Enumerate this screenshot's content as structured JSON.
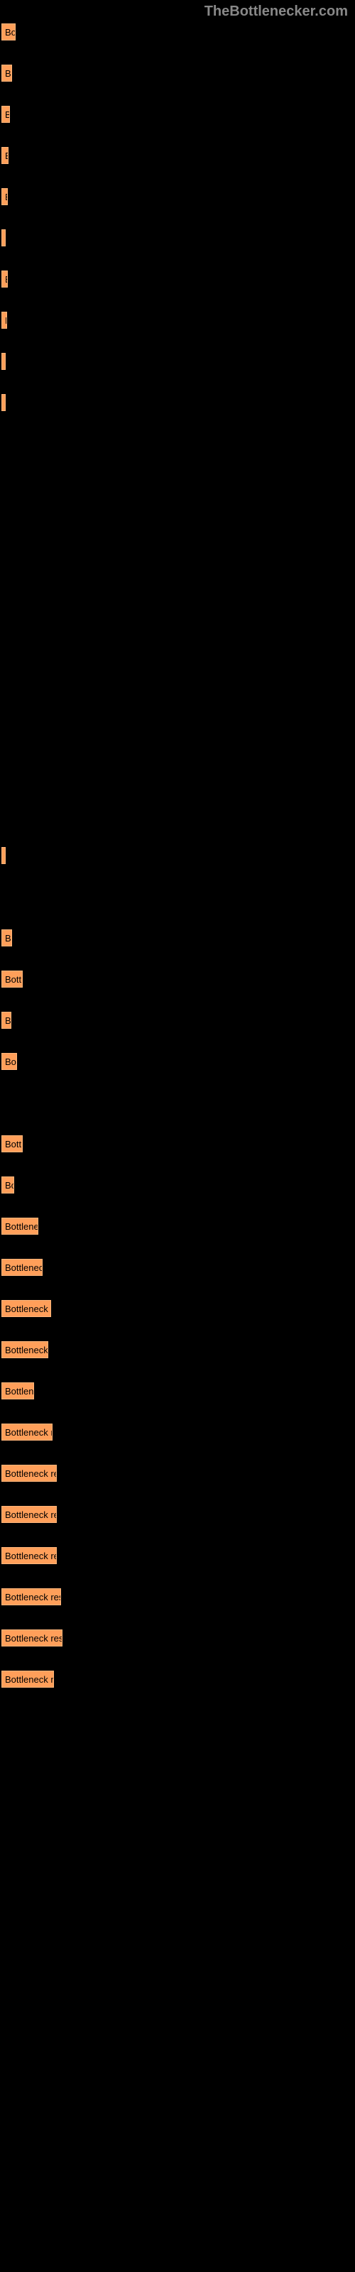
{
  "watermark_text": "TheBottlenecker.com",
  "chart": {
    "type": "bar",
    "bar_color": "#ff9f5a",
    "bar_border_color": "#ffb57a",
    "background_color": "#000000",
    "label_color": "#000000",
    "label_fontsize": 13,
    "bars": [
      {
        "width": 20,
        "label": "Bo"
      },
      {
        "width": 15,
        "label": "Bo"
      },
      {
        "width": 12,
        "label": "B"
      },
      {
        "width": 10,
        "label": "B"
      },
      {
        "width": 9,
        "label": "B"
      },
      {
        "width": 4,
        "label": ""
      },
      {
        "width": 9,
        "label": "B"
      },
      {
        "width": 8,
        "label": "B"
      },
      {
        "width": 3,
        "label": ""
      },
      {
        "width": 2,
        "label": ""
      },
      {
        "width": 0,
        "label": "",
        "spacer": true
      },
      {
        "width": 0,
        "label": "",
        "spacer": true
      },
      {
        "width": 0,
        "label": "",
        "spacer": true
      },
      {
        "width": 0,
        "label": "",
        "spacer": true
      },
      {
        "width": 0,
        "label": "",
        "spacer": true
      },
      {
        "width": 0,
        "label": "",
        "spacer": true
      },
      {
        "width": 0,
        "label": "",
        "spacer": true
      },
      {
        "width": 0,
        "label": "",
        "spacer": true
      },
      {
        "width": 0,
        "label": "",
        "spacer": true
      },
      {
        "width": 0,
        "label": "",
        "spacer": true
      },
      {
        "width": 4,
        "label": ""
      },
      {
        "width": 0,
        "label": "",
        "spacer": true
      },
      {
        "width": 15,
        "label": "B"
      },
      {
        "width": 30,
        "label": "Bottle"
      },
      {
        "width": 14,
        "label": "B"
      },
      {
        "width": 22,
        "label": "Bot"
      },
      {
        "width": 0,
        "label": "",
        "spacer": true
      },
      {
        "width": 30,
        "label": "Bottle"
      },
      {
        "width": 18,
        "label": "Bo"
      },
      {
        "width": 52,
        "label": "Bottleneck"
      },
      {
        "width": 58,
        "label": "Bottleneck r"
      },
      {
        "width": 70,
        "label": "Bottleneck res"
      },
      {
        "width": 66,
        "label": "Bottleneck re"
      },
      {
        "width": 46,
        "label": "Bottlenec"
      },
      {
        "width": 72,
        "label": "Bottleneck res"
      },
      {
        "width": 78,
        "label": "Bottleneck resu"
      },
      {
        "width": 78,
        "label": "Bottleneck resu"
      },
      {
        "width": 78,
        "label": "Bottleneck resu"
      },
      {
        "width": 84,
        "label": "Bottleneck result"
      },
      {
        "width": 86,
        "label": "Bottleneck result"
      },
      {
        "width": 74,
        "label": "Bottleneck res"
      }
    ]
  }
}
